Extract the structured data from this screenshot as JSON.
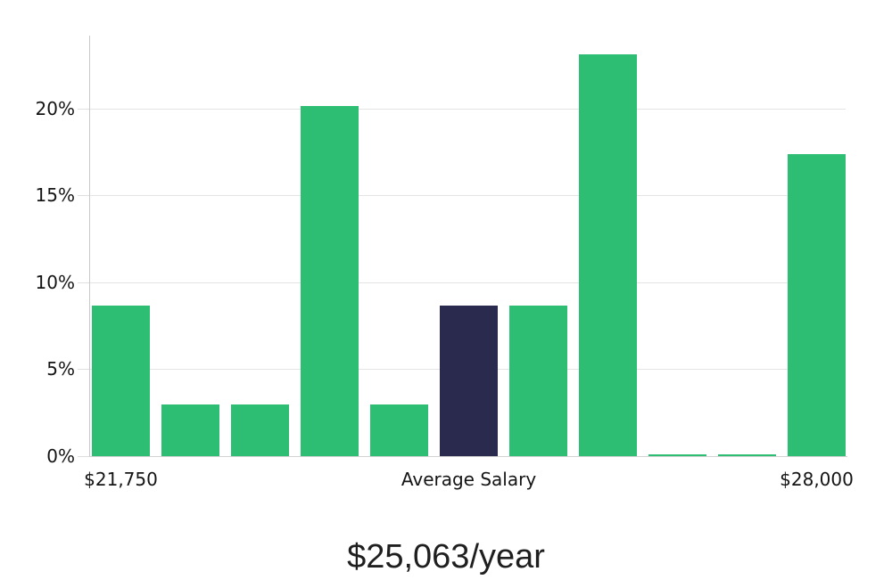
{
  "chart_data": {
    "type": "bar",
    "title": "$25,063/year",
    "xlabel": "",
    "ylabel": "",
    "ylim": [
      0,
      24.2
    ],
    "grid": true,
    "legend": "none",
    "y_ticks": [
      {
        "value": 0,
        "label": "0%"
      },
      {
        "value": 5,
        "label": "5%"
      },
      {
        "value": 10,
        "label": "10%"
      },
      {
        "value": 15,
        "label": "15%"
      },
      {
        "value": 20,
        "label": "20%"
      }
    ],
    "x_tick_labels": [
      {
        "bar_index": 0,
        "label": "$21,750"
      },
      {
        "bar_index": 5,
        "label": "Average Salary"
      },
      {
        "bar_index": 10,
        "label": "$28,000"
      }
    ],
    "bars": [
      {
        "value": 8.67,
        "highlight": false
      },
      {
        "value": 2.97,
        "highlight": false
      },
      {
        "value": 2.97,
        "highlight": false
      },
      {
        "value": 20.15,
        "highlight": false
      },
      {
        "value": 2.97,
        "highlight": false
      },
      {
        "value": 8.67,
        "highlight": true
      },
      {
        "value": 8.67,
        "highlight": false
      },
      {
        "value": 23.13,
        "highlight": false
      },
      {
        "value": 0.1,
        "highlight": false
      },
      {
        "value": 0.1,
        "highlight": false
      },
      {
        "value": 17.38,
        "highlight": false
      }
    ],
    "colors": {
      "bar": "#2DBD73",
      "highlight_bar": "#2A2A4E",
      "gridline": "#e4e4e4",
      "axis_line": "#c9c9c9",
      "text": "#141414"
    },
    "notes": {
      "highlight_meaning": "Average Salary bar"
    }
  }
}
